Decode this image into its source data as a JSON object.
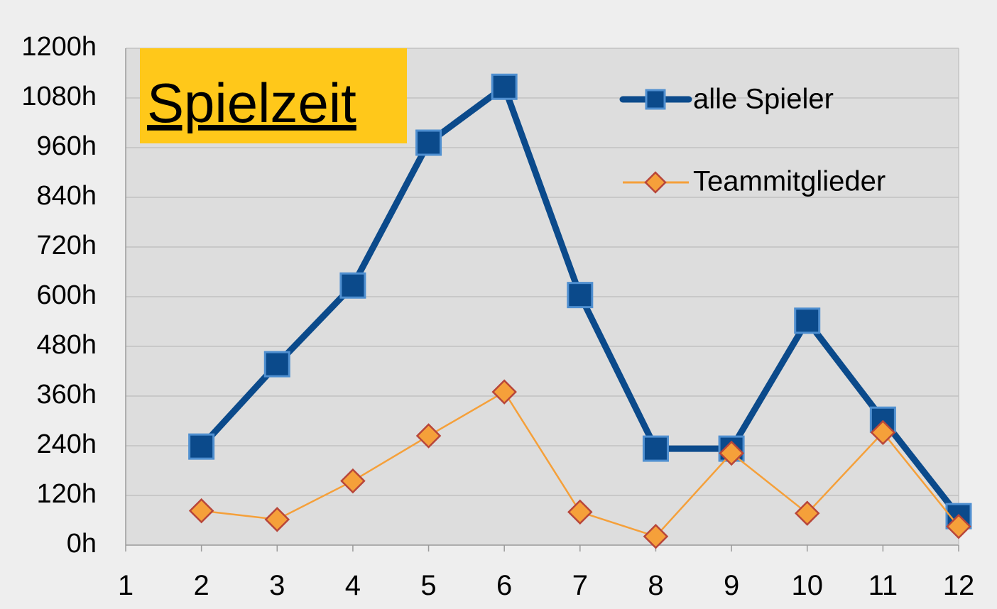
{
  "chart_data": {
    "type": "line",
    "title": "Spielzeit",
    "x": [
      1,
      2,
      3,
      4,
      5,
      6,
      7,
      8,
      9,
      10,
      11,
      12
    ],
    "x_ticks": [
      "1",
      "2",
      "3",
      "4",
      "5",
      "6",
      "7",
      "8",
      "9",
      "10",
      "11",
      "12"
    ],
    "y_ticks": [
      "0h",
      "120h",
      "240h",
      "360h",
      "480h",
      "600h",
      "720h",
      "840h",
      "960h",
      "1080h",
      "1200h"
    ],
    "ylim": [
      0,
      1200
    ],
    "xlim": [
      1,
      12
    ],
    "grid": true,
    "legend_position": "top-right",
    "series": [
      {
        "name": "alle Spieler",
        "color": "#0b4a8b",
        "marker": "square",
        "x": [
          2,
          3,
          4,
          5,
          6,
          7,
          8,
          9,
          10,
          11,
          12
        ],
        "values": [
          238,
          437,
          627,
          972,
          1107,
          604,
          233,
          233,
          542,
          303,
          70
        ]
      },
      {
        "name": "Teammitglieder",
        "color": "#f5a03a",
        "marker": "diamond",
        "x": [
          2,
          3,
          4,
          5,
          6,
          7,
          8,
          9,
          10,
          11,
          12
        ],
        "values": [
          83,
          62,
          155,
          264,
          370,
          80,
          21,
          222,
          77,
          272,
          45
        ]
      }
    ]
  },
  "colors": {
    "background": "#eeeeee",
    "plot_area": "#dddddd",
    "gridline": "#bdbdbd",
    "title_box": "#ffc81a"
  }
}
